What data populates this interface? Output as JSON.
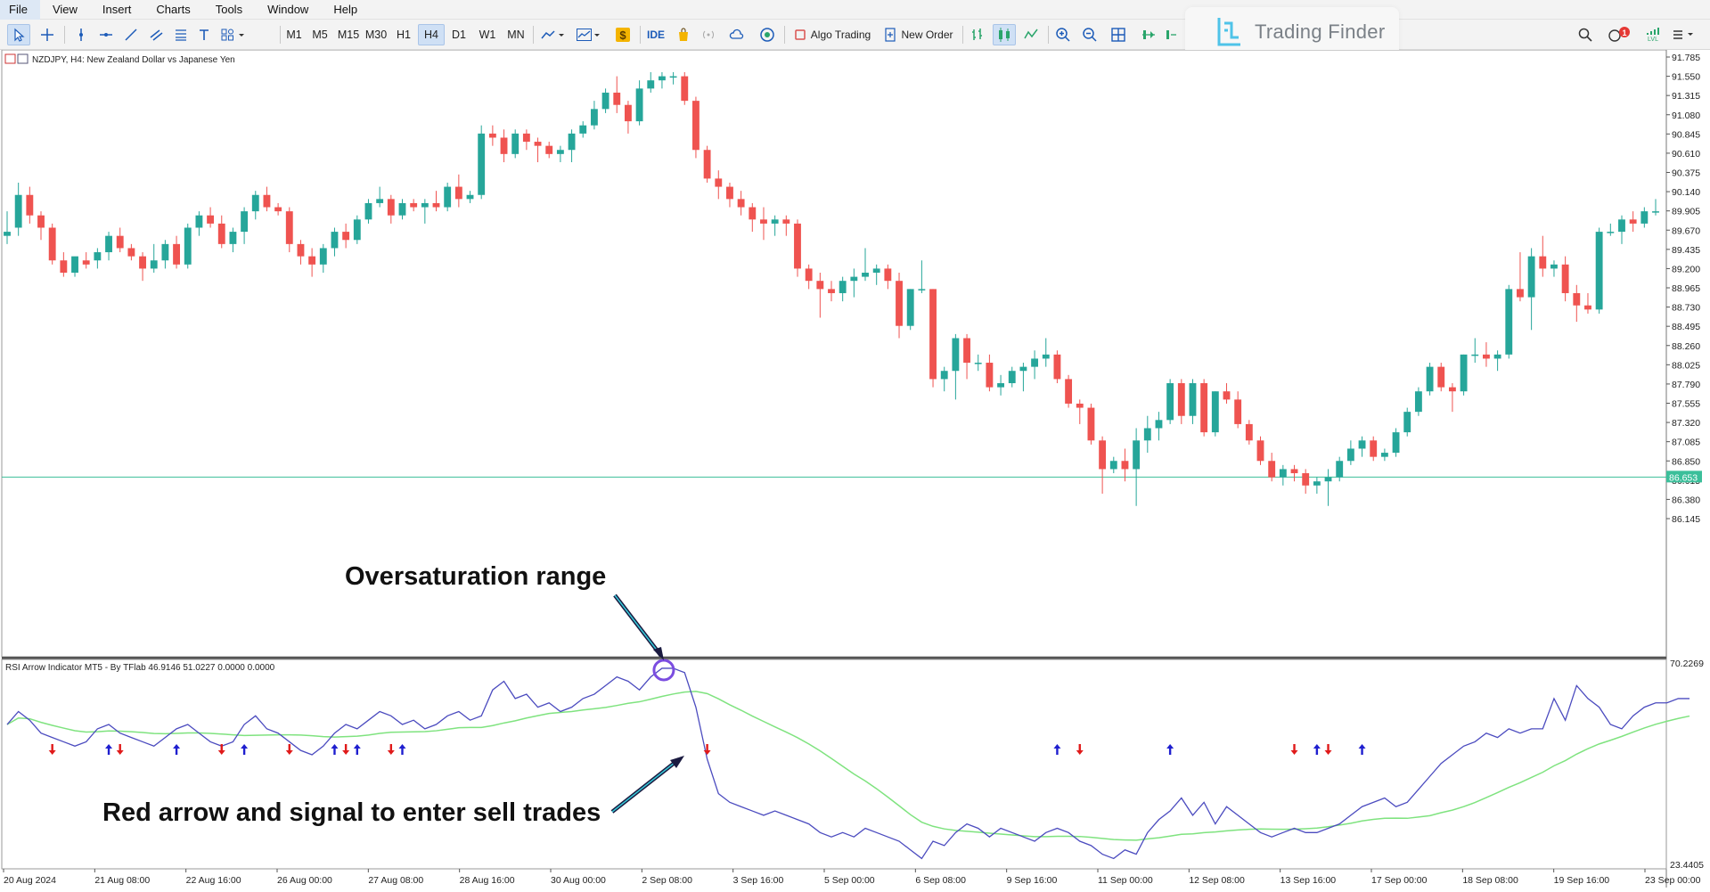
{
  "menu": [
    "File",
    "View",
    "Insert",
    "Charts",
    "Tools",
    "Window",
    "Help"
  ],
  "toolbar": {
    "timeframes": [
      "M1",
      "M5",
      "M15",
      "M30",
      "H1",
      "H4",
      "D1",
      "W1",
      "MN"
    ],
    "active_timeframe": "H4",
    "ide_label": "IDE",
    "algo_trading_label": "Algo Trading",
    "new_order_label": "New Order",
    "notification_count": "1",
    "signal_label": "LVL"
  },
  "brand": {
    "name": "Trading Finder"
  },
  "chart": {
    "title": "NZDJPY, H4:  New Zealand Dollar vs Japanese Yen",
    "price_labels": [
      "91.785",
      "91.550",
      "91.315",
      "91.080",
      "90.845",
      "90.610",
      "90.375",
      "90.140",
      "89.905",
      "89.670",
      "89.435",
      "89.200",
      "88.965",
      "88.730",
      "88.495",
      "88.260",
      "88.025",
      "87.790",
      "87.555",
      "87.320",
      "87.085",
      "86.850",
      "86.615",
      "86.380",
      "86.145"
    ],
    "current_price": "86.653",
    "date_labels": [
      "20 Aug 2024",
      "21 Aug 08:00",
      "22 Aug 16:00",
      "26 Aug 00:00",
      "27 Aug 08:00",
      "28 Aug 16:00",
      "30 Aug 00:00",
      "2 Sep 08:00",
      "3 Sep 16:00",
      "5 Sep 00:00",
      "6 Sep 08:00",
      "9 Sep 16:00",
      "11 Sep 00:00",
      "12 Sep 08:00",
      "13 Sep 16:00",
      "17 Sep 00:00",
      "18 Sep 08:00",
      "19 Sep 16:00",
      "23 Sep 00:00"
    ]
  },
  "indicator": {
    "title": "RSI Arrow Indicator MT5 - By TFlab 46.9146 51.0227 0.0000 0.0000",
    "top_label": "70.2269",
    "bottom_label": "23.4405"
  },
  "annotations": {
    "top": "Oversaturation range",
    "bottom": "Red arrow and signal to enter sell trades"
  },
  "colors": {
    "bull": "#26a69a",
    "bear": "#ef5350",
    "rsi_line": "#4b4bbf",
    "signal_line": "#7fe37f",
    "price_line": "#3bbf9a",
    "arrow_up": "#1f1fcf",
    "arrow_down": "#e01a1a",
    "circle": "#7b4de0"
  },
  "chart_data": {
    "type": "candlestick",
    "symbol": "NZDJPY",
    "timeframe": "H4",
    "ylim": [
      86.0,
      91.9
    ],
    "candles": [
      {
        "o": 89.6,
        "h": 89.9,
        "l": 89.5,
        "c": 89.65
      },
      {
        "o": 89.7,
        "h": 90.25,
        "l": 89.6,
        "c": 90.1
      },
      {
        "o": 90.1,
        "h": 90.2,
        "l": 89.75,
        "c": 89.85
      },
      {
        "o": 89.85,
        "h": 89.9,
        "l": 89.55,
        "c": 89.7
      },
      {
        "o": 89.7,
        "h": 89.75,
        "l": 89.25,
        "c": 89.3
      },
      {
        "o": 89.3,
        "h": 89.4,
        "l": 89.1,
        "c": 89.15
      },
      {
        "o": 89.15,
        "h": 89.3,
        "l": 89.1,
        "c": 89.35
      },
      {
        "o": 89.3,
        "h": 89.4,
        "l": 89.2,
        "c": 89.25
      },
      {
        "o": 89.3,
        "h": 89.45,
        "l": 89.2,
        "c": 89.4
      },
      {
        "o": 89.4,
        "h": 89.65,
        "l": 89.3,
        "c": 89.6
      },
      {
        "o": 89.6,
        "h": 89.7,
        "l": 89.4,
        "c": 89.45
      },
      {
        "o": 89.45,
        "h": 89.5,
        "l": 89.3,
        "c": 89.35
      },
      {
        "o": 89.35,
        "h": 89.4,
        "l": 89.05,
        "c": 89.2
      },
      {
        "o": 89.2,
        "h": 89.5,
        "l": 89.15,
        "c": 89.3
      },
      {
        "o": 89.3,
        "h": 89.55,
        "l": 89.2,
        "c": 89.5
      },
      {
        "o": 89.5,
        "h": 89.6,
        "l": 89.2,
        "c": 89.25
      },
      {
        "o": 89.25,
        "h": 89.75,
        "l": 89.2,
        "c": 89.7
      },
      {
        "o": 89.7,
        "h": 89.9,
        "l": 89.6,
        "c": 89.85
      },
      {
        "o": 89.85,
        "h": 89.95,
        "l": 89.7,
        "c": 89.75
      },
      {
        "o": 89.75,
        "h": 89.85,
        "l": 89.45,
        "c": 89.5
      },
      {
        "o": 89.5,
        "h": 89.7,
        "l": 89.4,
        "c": 89.65
      },
      {
        "o": 89.65,
        "h": 89.95,
        "l": 89.5,
        "c": 89.9
      },
      {
        "o": 89.9,
        "h": 90.15,
        "l": 89.8,
        "c": 90.1
      },
      {
        "o": 90.1,
        "h": 90.2,
        "l": 89.9,
        "c": 89.95
      },
      {
        "o": 89.95,
        "h": 90.0,
        "l": 89.85,
        "c": 89.9
      },
      {
        "o": 89.9,
        "h": 89.95,
        "l": 89.4,
        "c": 89.5
      },
      {
        "o": 89.5,
        "h": 89.55,
        "l": 89.25,
        "c": 89.35
      },
      {
        "o": 89.35,
        "h": 89.45,
        "l": 89.1,
        "c": 89.25
      },
      {
        "o": 89.25,
        "h": 89.5,
        "l": 89.15,
        "c": 89.45
      },
      {
        "o": 89.45,
        "h": 89.7,
        "l": 89.35,
        "c": 89.65
      },
      {
        "o": 89.65,
        "h": 89.75,
        "l": 89.45,
        "c": 89.55
      },
      {
        "o": 89.55,
        "h": 89.85,
        "l": 89.5,
        "c": 89.8
      },
      {
        "o": 89.8,
        "h": 90.05,
        "l": 89.75,
        "c": 90.0
      },
      {
        "o": 90.0,
        "h": 90.2,
        "l": 89.95,
        "c": 90.05
      },
      {
        "o": 90.05,
        "h": 90.1,
        "l": 89.75,
        "c": 89.85
      },
      {
        "o": 89.85,
        "h": 90.05,
        "l": 89.8,
        "c": 90.0
      },
      {
        "o": 90.0,
        "h": 90.05,
        "l": 89.9,
        "c": 89.95
      },
      {
        "o": 89.95,
        "h": 90.05,
        "l": 89.75,
        "c": 90.0
      },
      {
        "o": 90.0,
        "h": 90.15,
        "l": 89.9,
        "c": 89.95
      },
      {
        "o": 89.95,
        "h": 90.25,
        "l": 89.9,
        "c": 90.2
      },
      {
        "o": 90.2,
        "h": 90.35,
        "l": 89.95,
        "c": 90.05
      },
      {
        "o": 90.05,
        "h": 90.15,
        "l": 90.0,
        "c": 90.1
      },
      {
        "o": 90.1,
        "h": 90.95,
        "l": 90.05,
        "c": 90.85
      },
      {
        "o": 90.85,
        "h": 90.95,
        "l": 90.7,
        "c": 90.8
      },
      {
        "o": 90.8,
        "h": 90.9,
        "l": 90.5,
        "c": 90.6
      },
      {
        "o": 90.6,
        "h": 90.9,
        "l": 90.55,
        "c": 90.85
      },
      {
        "o": 90.85,
        "h": 90.9,
        "l": 90.65,
        "c": 90.75
      },
      {
        "o": 90.75,
        "h": 90.8,
        "l": 90.5,
        "c": 90.7
      },
      {
        "o": 90.7,
        "h": 90.75,
        "l": 90.55,
        "c": 90.6
      },
      {
        "o": 90.6,
        "h": 90.7,
        "l": 90.5,
        "c": 90.65
      },
      {
        "o": 90.65,
        "h": 90.9,
        "l": 90.5,
        "c": 90.85
      },
      {
        "o": 90.85,
        "h": 91.0,
        "l": 90.8,
        "c": 90.95
      },
      {
        "o": 90.95,
        "h": 91.25,
        "l": 90.9,
        "c": 91.15
      },
      {
        "o": 91.15,
        "h": 91.4,
        "l": 91.1,
        "c": 91.35
      },
      {
        "o": 91.35,
        "h": 91.55,
        "l": 91.1,
        "c": 91.2
      },
      {
        "o": 91.2,
        "h": 91.25,
        "l": 90.85,
        "c": 91.0
      },
      {
        "o": 91.0,
        "h": 91.5,
        "l": 90.95,
        "c": 91.4
      },
      {
        "o": 91.4,
        "h": 91.6,
        "l": 91.35,
        "c": 91.5
      },
      {
        "o": 91.5,
        "h": 91.6,
        "l": 91.4,
        "c": 91.55
      },
      {
        "o": 91.55,
        "h": 91.6,
        "l": 91.45,
        "c": 91.55
      },
      {
        "o": 91.55,
        "h": 91.6,
        "l": 91.2,
        "c": 91.25
      },
      {
        "o": 91.25,
        "h": 91.3,
        "l": 90.55,
        "c": 90.65
      },
      {
        "o": 90.65,
        "h": 90.7,
        "l": 90.25,
        "c": 90.3
      },
      {
        "o": 90.3,
        "h": 90.4,
        "l": 90.05,
        "c": 90.2
      },
      {
        "o": 90.2,
        "h": 90.25,
        "l": 89.95,
        "c": 90.05
      },
      {
        "o": 90.05,
        "h": 90.15,
        "l": 89.85,
        "c": 89.95
      },
      {
        "o": 89.95,
        "h": 90.0,
        "l": 89.65,
        "c": 89.8
      },
      {
        "o": 89.8,
        "h": 89.95,
        "l": 89.55,
        "c": 89.75
      },
      {
        "o": 89.75,
        "h": 89.85,
        "l": 89.6,
        "c": 89.8
      },
      {
        "o": 89.8,
        "h": 89.85,
        "l": 89.6,
        "c": 89.75
      },
      {
        "o": 89.75,
        "h": 89.8,
        "l": 89.1,
        "c": 89.2
      },
      {
        "o": 89.2,
        "h": 89.25,
        "l": 88.95,
        "c": 89.05
      },
      {
        "o": 89.05,
        "h": 89.15,
        "l": 88.6,
        "c": 88.95
      },
      {
        "o": 88.95,
        "h": 89.05,
        "l": 88.8,
        "c": 88.9
      },
      {
        "o": 88.9,
        "h": 89.1,
        "l": 88.8,
        "c": 89.05
      },
      {
        "o": 89.05,
        "h": 89.2,
        "l": 88.85,
        "c": 89.1
      },
      {
        "o": 89.1,
        "h": 89.45,
        "l": 89.05,
        "c": 89.15
      },
      {
        "o": 89.15,
        "h": 89.25,
        "l": 89.0,
        "c": 89.2
      },
      {
        "o": 89.2,
        "h": 89.25,
        "l": 88.95,
        "c": 89.05
      },
      {
        "o": 89.05,
        "h": 89.15,
        "l": 88.35,
        "c": 88.5
      },
      {
        "o": 88.5,
        "h": 88.95,
        "l": 88.45,
        "c": 88.95
      },
      {
        "o": 88.95,
        "h": 89.3,
        "l": 88.9,
        "c": 88.95
      },
      {
        "o": 88.95,
        "h": 88.95,
        "l": 87.75,
        "c": 87.85
      },
      {
        "o": 87.85,
        "h": 88.0,
        "l": 87.7,
        "c": 87.95
      },
      {
        "o": 87.95,
        "h": 88.4,
        "l": 87.6,
        "c": 88.35
      },
      {
        "o": 88.35,
        "h": 88.4,
        "l": 87.85,
        "c": 88.05
      },
      {
        "o": 88.05,
        "h": 88.15,
        "l": 87.95,
        "c": 88.05
      },
      {
        "o": 88.05,
        "h": 88.15,
        "l": 87.7,
        "c": 87.75
      },
      {
        "o": 87.75,
        "h": 87.9,
        "l": 87.65,
        "c": 87.8
      },
      {
        "o": 87.8,
        "h": 88.0,
        "l": 87.75,
        "c": 87.95
      },
      {
        "o": 87.95,
        "h": 88.05,
        "l": 87.7,
        "c": 88.0
      },
      {
        "o": 88.0,
        "h": 88.2,
        "l": 87.85,
        "c": 88.1
      },
      {
        "o": 88.1,
        "h": 88.35,
        "l": 88.0,
        "c": 88.15
      },
      {
        "o": 88.15,
        "h": 88.2,
        "l": 87.8,
        "c": 87.85
      },
      {
        "o": 87.85,
        "h": 87.9,
        "l": 87.5,
        "c": 87.55
      },
      {
        "o": 87.55,
        "h": 87.6,
        "l": 87.3,
        "c": 87.5
      },
      {
        "o": 87.5,
        "h": 87.55,
        "l": 87.05,
        "c": 87.1
      },
      {
        "o": 87.1,
        "h": 87.15,
        "l": 86.45,
        "c": 86.75
      },
      {
        "o": 86.75,
        "h": 86.9,
        "l": 86.7,
        "c": 86.85
      },
      {
        "o": 86.85,
        "h": 87.0,
        "l": 86.6,
        "c": 86.75
      },
      {
        "o": 86.75,
        "h": 87.25,
        "l": 86.3,
        "c": 87.1
      },
      {
        "o": 87.1,
        "h": 87.4,
        "l": 86.95,
        "c": 87.25
      },
      {
        "o": 87.25,
        "h": 87.45,
        "l": 87.1,
        "c": 87.35
      },
      {
        "o": 87.35,
        "h": 87.85,
        "l": 87.3,
        "c": 87.8
      },
      {
        "o": 87.8,
        "h": 87.85,
        "l": 87.3,
        "c": 87.4
      },
      {
        "o": 87.4,
        "h": 87.85,
        "l": 87.3,
        "c": 87.8
      },
      {
        "o": 87.8,
        "h": 87.85,
        "l": 87.15,
        "c": 87.2
      },
      {
        "o": 87.2,
        "h": 87.7,
        "l": 87.15,
        "c": 87.7
      },
      {
        "o": 87.7,
        "h": 87.8,
        "l": 87.55,
        "c": 87.6
      },
      {
        "o": 87.6,
        "h": 87.7,
        "l": 87.25,
        "c": 87.3
      },
      {
        "o": 87.3,
        "h": 87.35,
        "l": 87.05,
        "c": 87.1
      },
      {
        "o": 87.1,
        "h": 87.15,
        "l": 86.8,
        "c": 86.85
      },
      {
        "o": 86.85,
        "h": 86.95,
        "l": 86.6,
        "c": 86.65
      },
      {
        "o": 86.65,
        "h": 86.8,
        "l": 86.55,
        "c": 86.75
      },
      {
        "o": 86.75,
        "h": 86.8,
        "l": 86.6,
        "c": 86.7
      },
      {
        "o": 86.7,
        "h": 86.75,
        "l": 86.45,
        "c": 86.55
      },
      {
        "o": 86.55,
        "h": 86.65,
        "l": 86.45,
        "c": 86.6
      },
      {
        "o": 86.6,
        "h": 86.75,
        "l": 86.3,
        "c": 86.65
      },
      {
        "o": 86.65,
        "h": 86.9,
        "l": 86.6,
        "c": 86.85
      },
      {
        "o": 86.85,
        "h": 87.1,
        "l": 86.8,
        "c": 87.0
      },
      {
        "o": 87.0,
        "h": 87.15,
        "l": 86.9,
        "c": 87.1
      },
      {
        "o": 87.1,
        "h": 87.15,
        "l": 86.85,
        "c": 86.9
      },
      {
        "o": 86.9,
        "h": 87.0,
        "l": 86.85,
        "c": 86.95
      },
      {
        "o": 86.95,
        "h": 87.25,
        "l": 86.9,
        "c": 87.2
      },
      {
        "o": 87.2,
        "h": 87.5,
        "l": 87.15,
        "c": 87.45
      },
      {
        "o": 87.45,
        "h": 87.75,
        "l": 87.4,
        "c": 87.7
      },
      {
        "o": 87.7,
        "h": 88.05,
        "l": 87.65,
        "c": 88.0
      },
      {
        "o": 88.0,
        "h": 88.05,
        "l": 87.7,
        "c": 87.75
      },
      {
        "o": 87.75,
        "h": 87.8,
        "l": 87.45,
        "c": 87.7
      },
      {
        "o": 87.7,
        "h": 88.15,
        "l": 87.65,
        "c": 88.15
      },
      {
        "o": 88.15,
        "h": 88.35,
        "l": 88.05,
        "c": 88.15
      },
      {
        "o": 88.15,
        "h": 88.3,
        "l": 88.0,
        "c": 88.1
      },
      {
        "o": 88.1,
        "h": 88.2,
        "l": 87.95,
        "c": 88.15
      },
      {
        "o": 88.15,
        "h": 89.0,
        "l": 88.1,
        "c": 88.95
      },
      {
        "o": 88.95,
        "h": 89.4,
        "l": 88.8,
        "c": 88.85
      },
      {
        "o": 88.85,
        "h": 89.45,
        "l": 88.45,
        "c": 89.35
      },
      {
        "o": 89.35,
        "h": 89.6,
        "l": 89.1,
        "c": 89.2
      },
      {
        "o": 89.2,
        "h": 89.3,
        "l": 89.1,
        "c": 89.25
      },
      {
        "o": 89.25,
        "h": 89.35,
        "l": 88.8,
        "c": 88.9
      },
      {
        "o": 88.9,
        "h": 89.0,
        "l": 88.55,
        "c": 88.75
      },
      {
        "o": 88.75,
        "h": 88.9,
        "l": 88.65,
        "c": 88.7
      },
      {
        "o": 88.7,
        "h": 89.7,
        "l": 88.65,
        "c": 89.65
      },
      {
        "o": 89.65,
        "h": 89.75,
        "l": 89.6,
        "c": 89.65
      },
      {
        "o": 89.65,
        "h": 89.85,
        "l": 89.5,
        "c": 89.8
      },
      {
        "o": 89.8,
        "h": 89.9,
        "l": 89.65,
        "c": 89.75
      },
      {
        "o": 89.75,
        "h": 89.95,
        "l": 89.7,
        "c": 89.9
      },
      {
        "o": 89.9,
        "h": 90.05,
        "l": 89.85,
        "c": 89.9
      }
    ],
    "current_price": 86.653,
    "indicator": {
      "name": "RSI Arrow Indicator MT5",
      "ylim": [
        23.4405,
        70.2269
      ],
      "rsi": [
        56,
        59,
        57,
        54,
        53,
        52,
        51,
        52,
        55,
        56,
        54,
        53,
        52,
        51,
        53,
        55,
        56,
        54,
        52,
        51,
        52,
        56,
        58,
        55,
        54,
        52,
        50,
        49,
        51,
        54,
        56,
        55,
        57,
        59,
        58,
        56,
        57,
        55,
        56,
        58,
        59,
        57,
        58,
        64,
        66,
        62,
        63,
        60,
        61,
        59,
        60,
        62,
        63,
        65,
        67,
        66,
        64,
        67,
        69,
        69,
        68,
        60,
        48,
        40,
        38,
        37,
        36,
        35,
        36,
        35,
        34,
        33,
        31,
        30,
        31,
        30,
        32,
        31,
        30,
        29,
        27,
        25,
        29,
        28,
        31,
        33,
        32,
        30,
        32,
        31,
        30,
        29,
        31,
        32,
        31,
        29,
        28,
        26,
        25,
        27,
        26,
        31,
        34,
        36,
        39,
        35,
        38,
        33,
        37,
        35,
        33,
        31,
        30,
        31,
        32,
        31,
        31,
        32,
        33,
        35,
        37,
        38,
        39,
        37,
        38,
        41,
        44,
        47,
        49,
        51,
        52,
        54,
        53,
        55,
        54,
        55,
        55,
        62,
        57,
        65,
        62,
        60,
        56,
        55,
        58,
        60,
        61,
        61,
        62,
        62
      ]
    },
    "signals": [
      {
        "type": "sell",
        "bar": 4
      },
      {
        "type": "buy",
        "bar": 9
      },
      {
        "type": "sell",
        "bar": 10
      },
      {
        "type": "buy",
        "bar": 15
      },
      {
        "type": "sell",
        "bar": 19
      },
      {
        "type": "buy",
        "bar": 21
      },
      {
        "type": "sell",
        "bar": 25
      },
      {
        "type": "buy",
        "bar": 29
      },
      {
        "type": "sell",
        "bar": 30
      },
      {
        "type": "buy",
        "bar": 31
      },
      {
        "type": "sell",
        "bar": 34
      },
      {
        "type": "buy",
        "bar": 35
      },
      {
        "type": "sell",
        "bar": 62
      },
      {
        "type": "buy",
        "bar": 93
      },
      {
        "type": "sell",
        "bar": 95
      },
      {
        "type": "buy",
        "bar": 103
      },
      {
        "type": "sell",
        "bar": 114
      },
      {
        "type": "buy",
        "bar": 116
      },
      {
        "type": "sell",
        "bar": 117
      },
      {
        "type": "buy",
        "bar": 120
      }
    ]
  }
}
